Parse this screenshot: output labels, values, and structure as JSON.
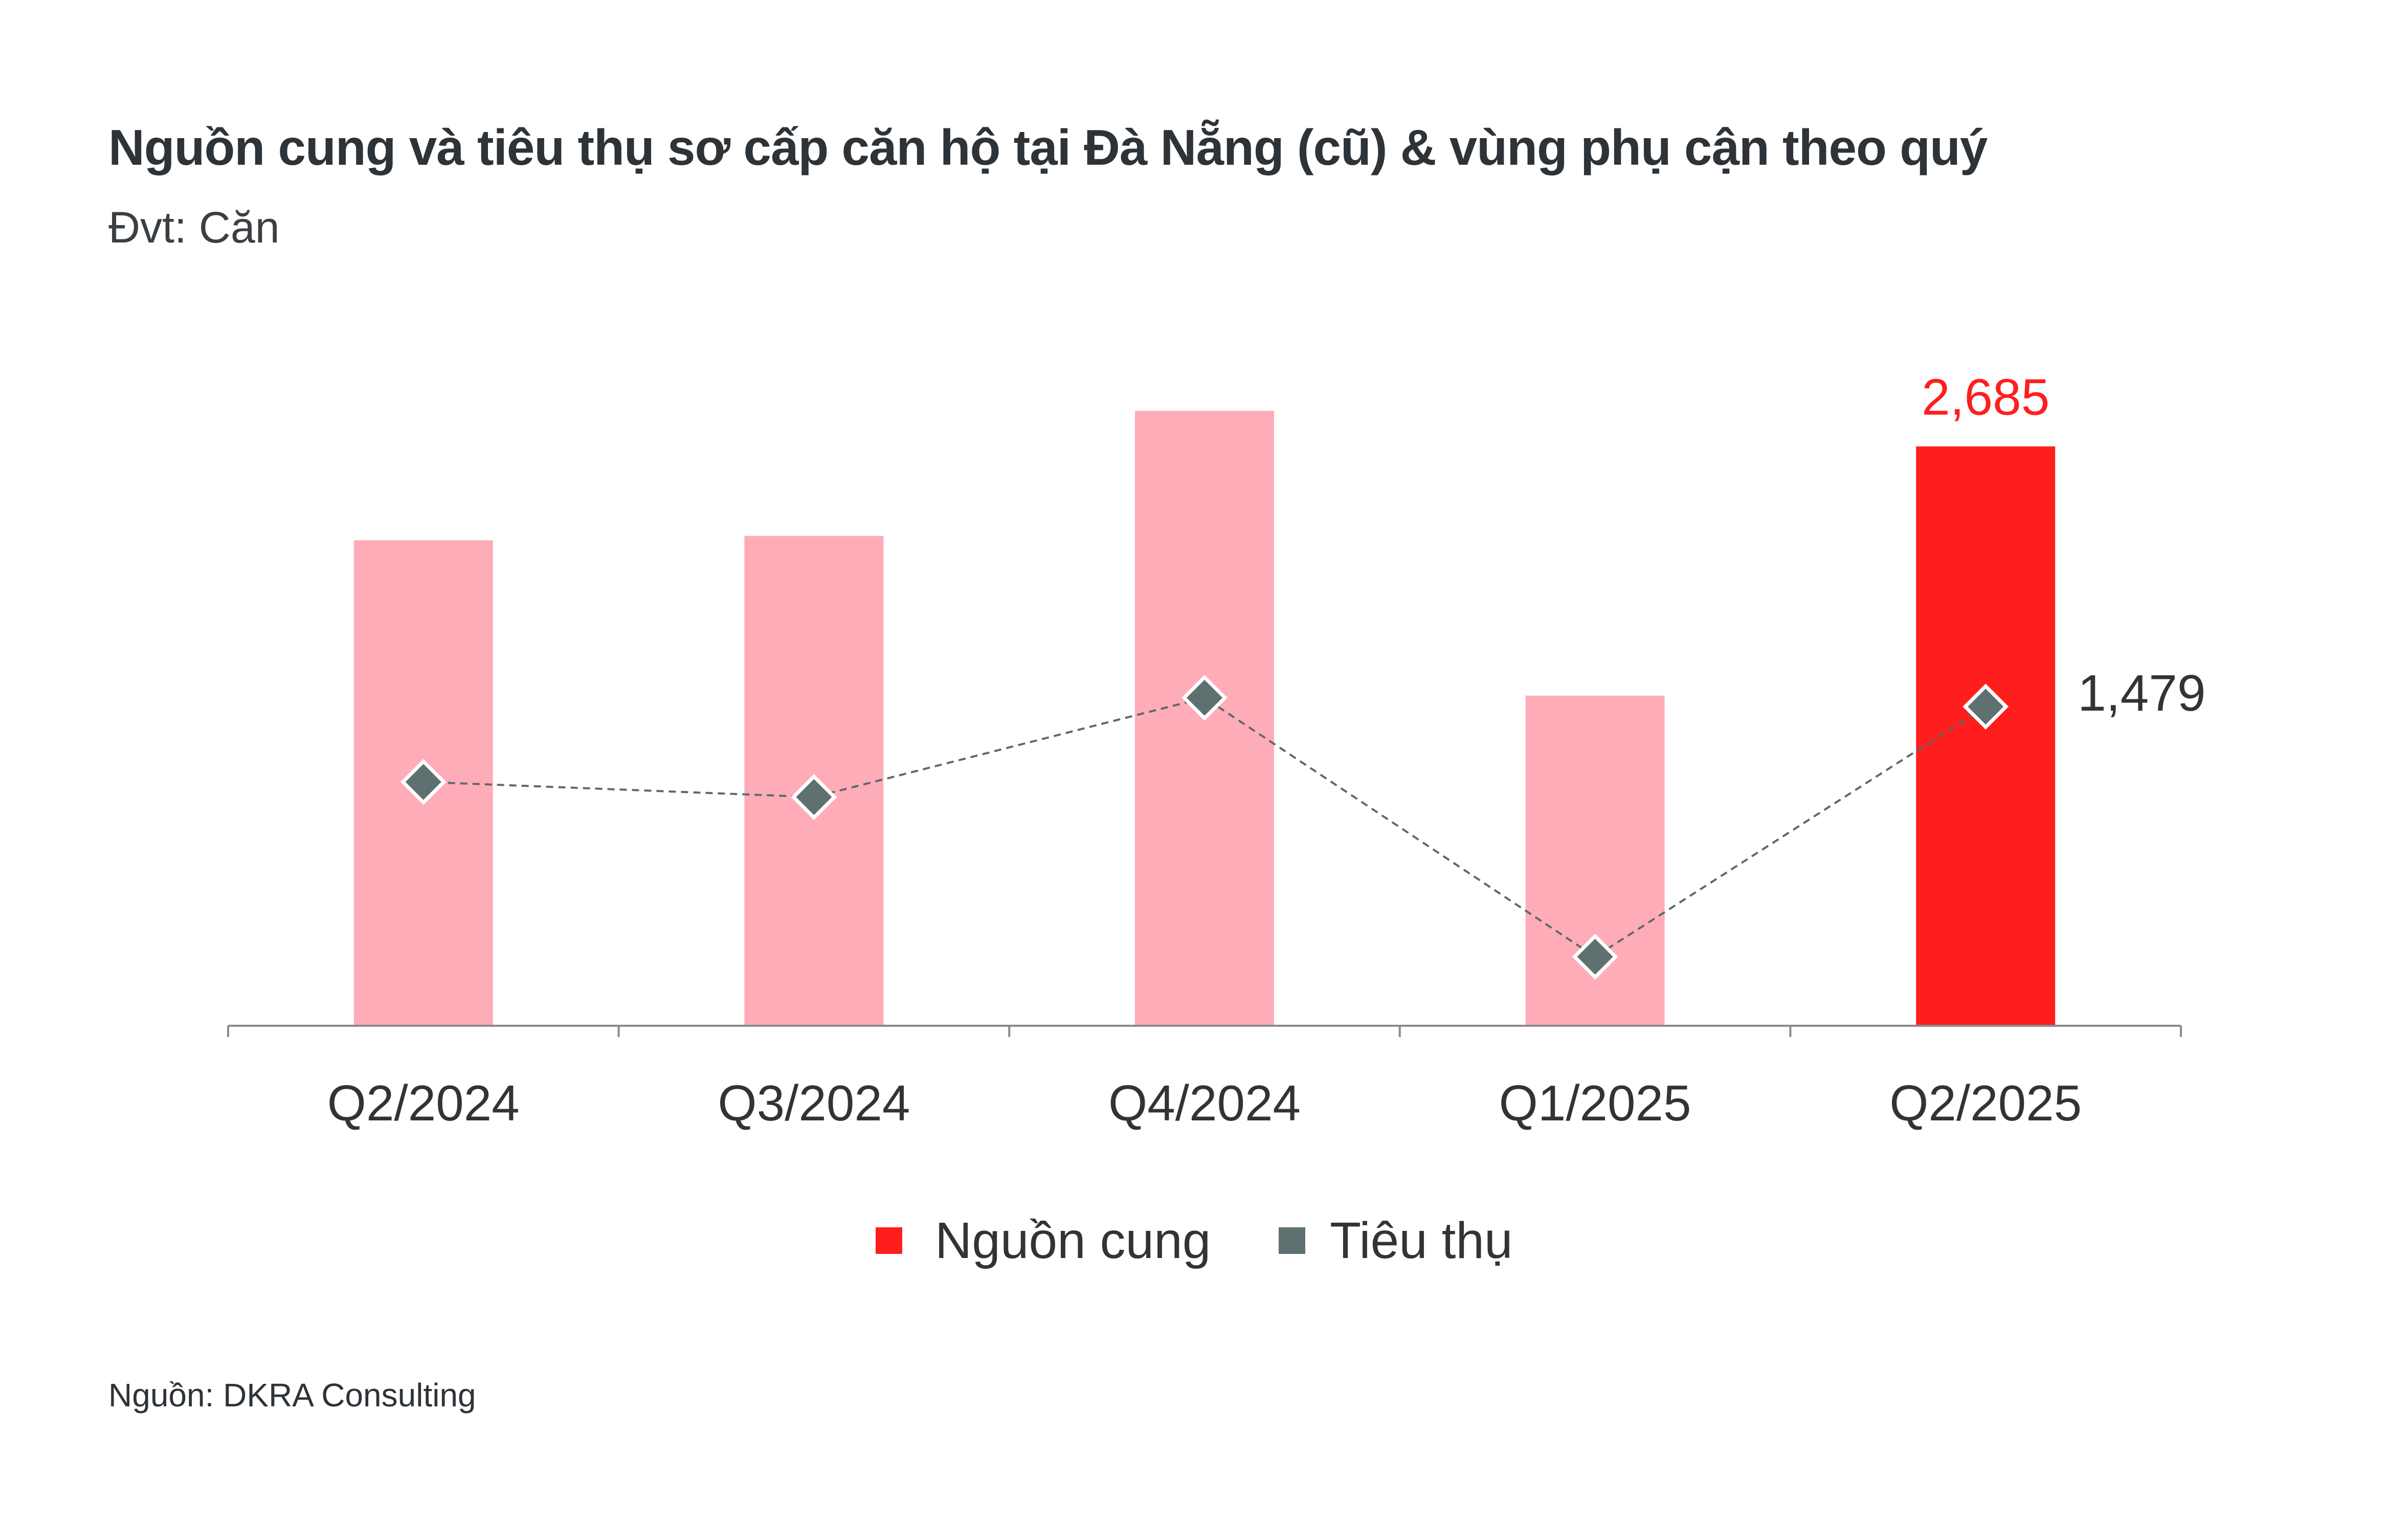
{
  "chart_data": {
    "type": "bar",
    "title": "Nguồn cung và tiêu thụ sơ cấp căn hộ tại Đà Nẵng (cũ) & vùng phụ cận theo quý",
    "subtitle": "Đvt: Căn",
    "categories": [
      "Q2/2024",
      "Q3/2024",
      "Q4/2024",
      "Q1/2025",
      "Q2/2025"
    ],
    "series": [
      {
        "name": "Nguồn cung",
        "type": "bar",
        "values": [
          2250,
          2270,
          2850,
          1530,
          2685
        ],
        "value_labels": [
          "",
          "",
          "",
          "",
          "2,685"
        ],
        "colors": [
          "#ffacb9",
          "#ffacb9",
          "#ffacb9",
          "#ffacb9",
          "#ff1e1e"
        ]
      },
      {
        "name": "Tiêu thụ",
        "type": "line",
        "style": "dashed",
        "marker": "diamond",
        "values": [
          1130,
          1060,
          1520,
          320,
          1479
        ],
        "value_labels": [
          "",
          "",
          "",
          "",
          "1,479"
        ]
      }
    ],
    "ylim": [
      0,
      3000
    ],
    "grid": false,
    "legend": "bottom-center",
    "colors": {
      "bar": "#ffacb9",
      "bar_highlight": "#ff1e1e",
      "line": "#5a6a6a",
      "marker": "#5f7070",
      "axis": "#8a8a8a"
    }
  },
  "source": "Nguồn: DKRA Consulting"
}
